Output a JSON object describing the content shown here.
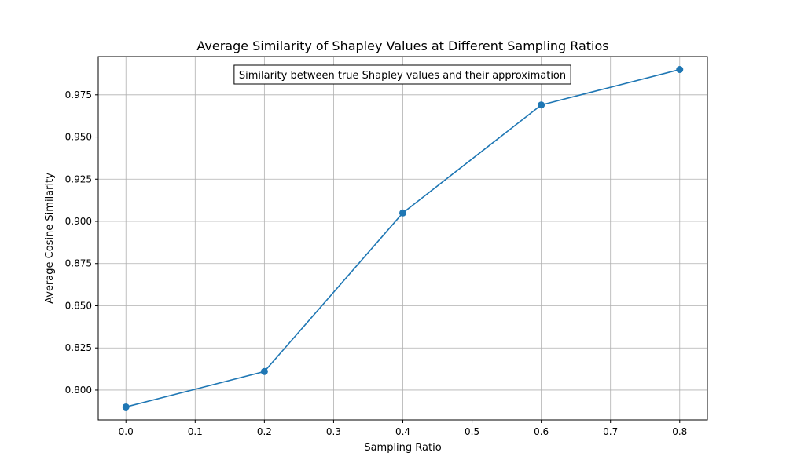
{
  "chart_data": {
    "type": "line",
    "title": "Average Similarity of Shapley Values at Different Sampling Ratios",
    "xlabel": "Sampling Ratio",
    "ylabel": "Average Cosine Similarity",
    "annotation": "Similarity between true Shapley values and their approximation",
    "xlim": [
      -0.04,
      0.84
    ],
    "ylim": [
      0.7823,
      0.9977
    ],
    "x_ticks": [
      "0.0",
      "0.1",
      "0.2",
      "0.3",
      "0.4",
      "0.5",
      "0.6",
      "0.7",
      "0.8"
    ],
    "y_ticks": [
      "0.800",
      "0.825",
      "0.850",
      "0.875",
      "0.900",
      "0.925",
      "0.950",
      "0.975"
    ],
    "grid": true,
    "series": [
      {
        "x": [
          0.0,
          0.2,
          0.4,
          0.6,
          0.8
        ],
        "y": [
          0.79,
          0.811,
          0.905,
          0.969,
          0.99
        ],
        "color": "#1f77b4",
        "marker": "circle"
      }
    ]
  }
}
